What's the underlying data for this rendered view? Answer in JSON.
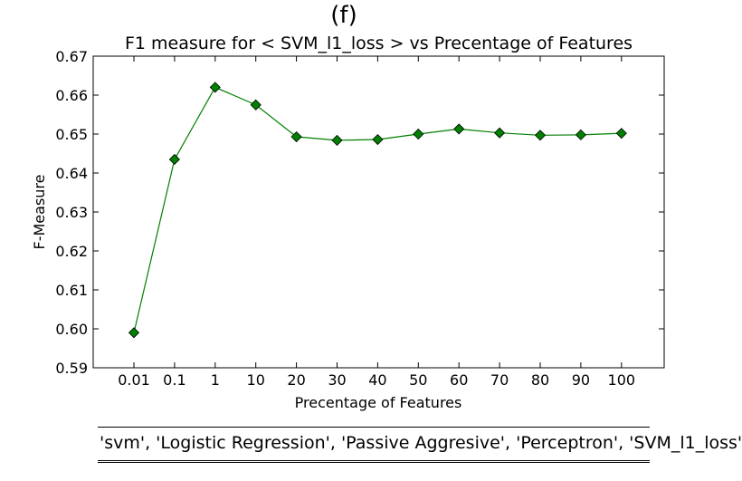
{
  "panel_label": "(f)",
  "footer": {
    "text": "'svm', 'Logistic Regression', 'Passive Aggresive', 'Perceptron', 'SVM_l1_loss'"
  },
  "chart_data": {
    "type": "line",
    "title": "F1 measure for < SVM_l1_loss > vs Precentage of Features",
    "xlabel": "Precentage of Features",
    "ylabel": "F-Measure",
    "categories": [
      "0.01",
      "0.1",
      "1",
      "10",
      "20",
      "30",
      "40",
      "50",
      "60",
      "70",
      "80",
      "90",
      "100"
    ],
    "series": [
      {
        "values": [
          0.599,
          0.6435,
          0.662,
          0.6575,
          0.6493,
          0.6484,
          0.6486,
          0.65,
          0.6513,
          0.6503,
          0.6497,
          0.6498,
          0.6502
        ]
      }
    ],
    "ylim": [
      0.59,
      0.67
    ],
    "yticks": [
      "0.59",
      "0.60",
      "0.61",
      "0.62",
      "0.63",
      "0.64",
      "0.65",
      "0.66",
      "0.67"
    ],
    "grid": false,
    "line_color": "#007f00",
    "marker_color": "#008000",
    "marker": "diamond"
  }
}
